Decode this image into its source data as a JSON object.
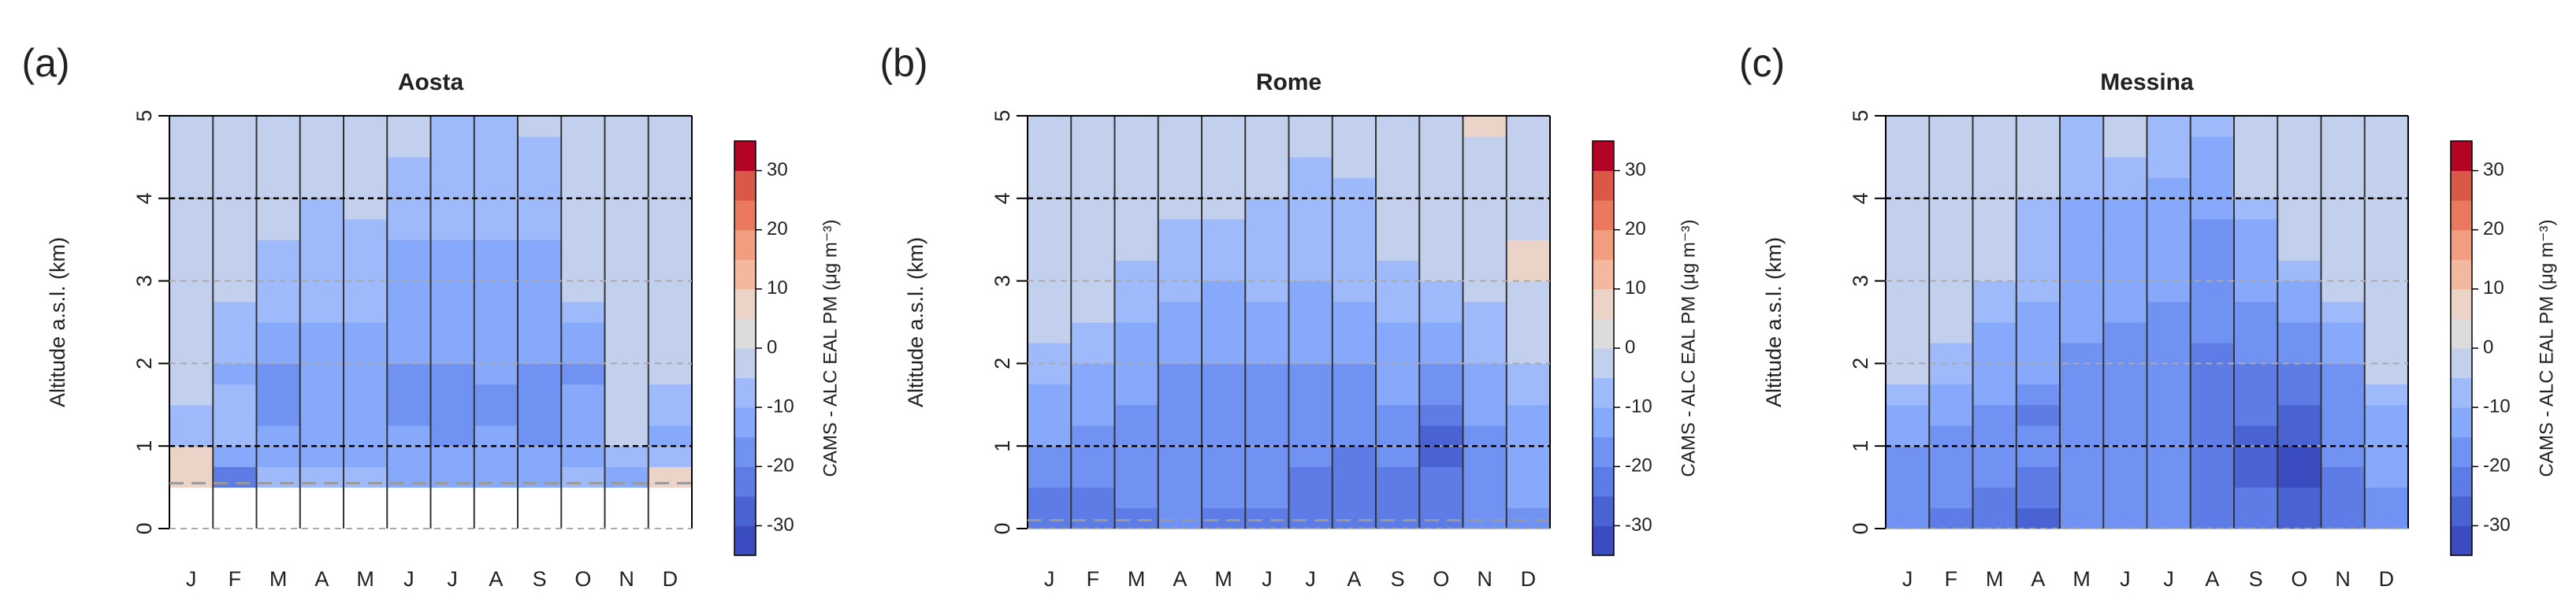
{
  "chart_data": [
    {
      "type": "heatmap",
      "panel_label": "(a)",
      "title": "Aosta",
      "ylabel": "Altitude a.s.l. (km)",
      "categories": [
        "J",
        "F",
        "M",
        "A",
        "M",
        "J",
        "J",
        "A",
        "S",
        "O",
        "N",
        "D"
      ],
      "y_edges": [
        0,
        0.25,
        0.5,
        0.75,
        1,
        1.25,
        1.5,
        1.75,
        2,
        2.25,
        2.5,
        2.75,
        3,
        3.25,
        3.5,
        3.75,
        4,
        4.25,
        4.5,
        4.75,
        5
      ],
      "ylim": [
        0,
        5
      ],
      "yticks": [
        0,
        1,
        2,
        3,
        4,
        5
      ],
      "grid": true,
      "ref_lines": [
        1,
        4
      ],
      "surface": 0.55,
      "values": [
        [
          null,
          null,
          7,
          7,
          -7,
          -7,
          -2,
          -2,
          -2,
          -2,
          -2,
          -2,
          -2,
          -2,
          -2,
          -2,
          -2,
          -2,
          -2,
          -2
        ],
        [
          null,
          null,
          -22,
          -12,
          -7,
          -7,
          -7,
          -12,
          -7,
          -7,
          -7,
          -2,
          -2,
          -2,
          -2,
          -2,
          -2,
          -2,
          -2,
          -2
        ],
        [
          null,
          null,
          -7,
          -12,
          -12,
          -17,
          -17,
          -17,
          -12,
          -12,
          -7,
          -7,
          -7,
          -7,
          -2,
          -2,
          -2,
          -2,
          -2,
          -2
        ],
        [
          null,
          null,
          -7,
          -12,
          -12,
          -12,
          -12,
          -12,
          -12,
          -12,
          -7,
          -7,
          -7,
          -7,
          -7,
          -7,
          -2,
          -2,
          -2,
          -2
        ],
        [
          null,
          null,
          -7,
          -12,
          -12,
          -12,
          -12,
          -12,
          -12,
          -12,
          -7,
          -7,
          -7,
          -7,
          -7,
          -2,
          -2,
          -2,
          -2,
          -2
        ],
        [
          null,
          null,
          -12,
          -12,
          -12,
          -17,
          -17,
          -17,
          -12,
          -12,
          -12,
          -12,
          -12,
          -12,
          -7,
          -7,
          -7,
          -7,
          -2,
          -2
        ],
        [
          null,
          null,
          -12,
          -12,
          -17,
          -17,
          -17,
          -17,
          -12,
          -12,
          -12,
          -12,
          -12,
          -12,
          -7,
          -7,
          -7,
          -7,
          -7,
          -7
        ],
        [
          null,
          null,
          -12,
          -12,
          -12,
          -17,
          -17,
          -12,
          -12,
          -12,
          -12,
          -12,
          -12,
          -12,
          -7,
          -7,
          -7,
          -7,
          -7,
          -7
        ],
        [
          null,
          null,
          -12,
          -12,
          -17,
          -17,
          -17,
          -17,
          -12,
          -12,
          -12,
          -12,
          -12,
          -12,
          -7,
          -7,
          -7,
          -7,
          -7,
          -2
        ],
        [
          null,
          null,
          -7,
          -12,
          -12,
          -12,
          -12,
          -17,
          -12,
          -12,
          -7,
          -2,
          -2,
          -2,
          -2,
          -2,
          -2,
          -2,
          -2,
          -2
        ],
        [
          null,
          null,
          -12,
          -7,
          -2,
          -2,
          -2,
          -2,
          -2,
          -2,
          -2,
          -2,
          -2,
          -2,
          -2,
          -2,
          -2,
          -2,
          -2,
          -2
        ],
        [
          null,
          null,
          7,
          -7,
          -12,
          -7,
          -7,
          -2,
          -2,
          -2,
          -2,
          -2,
          -2,
          -2,
          -2,
          -2,
          -2,
          -2,
          -2,
          -2
        ]
      ],
      "colorbar": {
        "label": "CAMS - ALC EAL PM (μg m⁻³)",
        "levels": [
          -35,
          -30,
          -25,
          -20,
          -15,
          -10,
          -5,
          0,
          5,
          10,
          15,
          20,
          25,
          30,
          35
        ],
        "colors": [
          "#3b4cc0",
          "#4a63d3",
          "#5d7ce6",
          "#7092f3",
          "#86a9fb",
          "#9fbafa",
          "#c2d0ee",
          "#dcdcdc",
          "#ecd3c8",
          "#f4b89e",
          "#f29d80",
          "#e9785d",
          "#d95847",
          "#b40426"
        ],
        "lim": [
          -35,
          35
        ],
        "ticks": [
          -30,
          -20,
          -10,
          0,
          10,
          20,
          30
        ]
      }
    },
    {
      "type": "heatmap",
      "panel_label": "(b)",
      "title": "Rome",
      "ylabel": "Altitude a.s.l. (km)",
      "categories": [
        "J",
        "F",
        "M",
        "A",
        "M",
        "J",
        "J",
        "A",
        "S",
        "O",
        "N",
        "D"
      ],
      "y_edges": [
        0,
        0.25,
        0.5,
        0.75,
        1,
        1.25,
        1.5,
        1.75,
        2,
        2.25,
        2.5,
        2.75,
        3,
        3.25,
        3.5,
        3.75,
        4,
        4.25,
        4.5,
        4.75,
        5
      ],
      "ylim": [
        0,
        5
      ],
      "yticks": [
        0,
        1,
        2,
        3,
        4,
        5
      ],
      "grid": true,
      "ref_lines": [
        1,
        4
      ],
      "surface": 0.1,
      "values": [
        [
          -22,
          -22,
          -17,
          -17,
          -12,
          -12,
          -12,
          -7,
          -7,
          -2,
          -2,
          -2,
          -2,
          -2,
          -2,
          -2,
          -2,
          -2,
          -2,
          -2
        ],
        [
          -22,
          -22,
          -17,
          -17,
          -17,
          -12,
          -12,
          -12,
          -7,
          -7,
          -2,
          -2,
          -2,
          -2,
          -2,
          -2,
          -2,
          -2,
          -2,
          -2
        ],
        [
          -22,
          -17,
          -17,
          -17,
          -17,
          -17,
          -12,
          -12,
          -12,
          -12,
          -7,
          -7,
          -7,
          -2,
          -2,
          -2,
          -2,
          -2,
          -2,
          -2
        ],
        [
          -17,
          -17,
          -17,
          -17,
          -17,
          -17,
          -17,
          -17,
          -12,
          -12,
          -12,
          -7,
          -7,
          -7,
          -7,
          -2,
          -2,
          -2,
          -2,
          -2
        ],
        [
          -22,
          -17,
          -17,
          -17,
          -17,
          -17,
          -17,
          -17,
          -12,
          -12,
          -12,
          -12,
          -7,
          -7,
          -7,
          -2,
          -2,
          -2,
          -2,
          -2
        ],
        [
          -22,
          -17,
          -17,
          -17,
          -17,
          -17,
          -17,
          -17,
          -12,
          -12,
          -12,
          -7,
          -7,
          -7,
          -7,
          -7,
          -2,
          -2,
          -2,
          -2
        ],
        [
          -22,
          -22,
          -22,
          -17,
          -17,
          -17,
          -17,
          -17,
          -12,
          -12,
          -12,
          -12,
          -7,
          -7,
          -7,
          -7,
          -7,
          -7,
          -2,
          -2
        ],
        [
          -22,
          -22,
          -22,
          -22,
          -17,
          -17,
          -17,
          -17,
          -12,
          -12,
          -12,
          -7,
          -7,
          -7,
          -7,
          -7,
          -7,
          -2,
          -2,
          -2
        ],
        [
          -22,
          -22,
          -22,
          -17,
          -17,
          -17,
          -12,
          -12,
          -12,
          -12,
          -7,
          -7,
          -7,
          -2,
          -2,
          -2,
          -2,
          -2,
          -2,
          -2
        ],
        [
          -22,
          -22,
          -22,
          -27,
          -27,
          -22,
          -17,
          -17,
          -12,
          -12,
          -7,
          -7,
          -2,
          -2,
          -2,
          -2,
          -2,
          -2,
          -2,
          -2
        ],
        [
          -17,
          -17,
          -17,
          -17,
          -17,
          -12,
          -12,
          -12,
          -7,
          -7,
          -7,
          -2,
          -2,
          -2,
          -2,
          -2,
          -2,
          -2,
          -2,
          7
        ],
        [
          -17,
          -12,
          -12,
          -12,
          -12,
          -12,
          -7,
          -7,
          -2,
          -2,
          -2,
          -2,
          7,
          7,
          -2,
          -2,
          -2,
          -2,
          -2,
          -2
        ]
      ],
      "colorbar": {
        "label": "CAMS - ALC EAL PM (μg m⁻³)",
        "levels": [
          -35,
          -30,
          -25,
          -20,
          -15,
          -10,
          -5,
          0,
          5,
          10,
          15,
          20,
          25,
          30,
          35
        ],
        "colors": [
          "#3b4cc0",
          "#4a63d3",
          "#5d7ce6",
          "#7092f3",
          "#86a9fb",
          "#9fbafa",
          "#c2d0ee",
          "#dcdcdc",
          "#ecd3c8",
          "#f4b89e",
          "#f29d80",
          "#e9785d",
          "#d95847",
          "#b40426"
        ],
        "lim": [
          -35,
          35
        ],
        "ticks": [
          -30,
          -20,
          -10,
          0,
          10,
          20,
          30
        ]
      }
    },
    {
      "type": "heatmap",
      "panel_label": "(c)",
      "title": "Messina",
      "ylabel": "Altitude a.s.l. (km)",
      "categories": [
        "J",
        "F",
        "M",
        "A",
        "M",
        "J",
        "J",
        "A",
        "S",
        "O",
        "N",
        "D"
      ],
      "y_edges": [
        0,
        0.25,
        0.5,
        0.75,
        1,
        1.25,
        1.5,
        1.75,
        2,
        2.25,
        2.5,
        2.75,
        3,
        3.25,
        3.5,
        3.75,
        4,
        4.25,
        4.5,
        4.75,
        5
      ],
      "ylim": [
        0,
        5
      ],
      "yticks": [
        0,
        1,
        2,
        3,
        4,
        5
      ],
      "grid": true,
      "ref_lines": [
        1,
        4
      ],
      "values": [
        [
          -17,
          -17,
          -17,
          -17,
          -12,
          -12,
          -7,
          -2,
          -2,
          -2,
          -2,
          -2,
          -2,
          -2,
          -2,
          -2,
          -2,
          -2,
          -2,
          -2
        ],
        [
          -22,
          -17,
          -17,
          -17,
          -17,
          -12,
          -12,
          -7,
          -7,
          -2,
          -2,
          -2,
          -2,
          -2,
          -2,
          -2,
          -2,
          -2,
          -2,
          -2
        ],
        [
          -22,
          -22,
          -17,
          -17,
          -17,
          -17,
          -12,
          -12,
          -12,
          -12,
          -7,
          -7,
          -2,
          -2,
          -2,
          -2,
          -2,
          -2,
          -2,
          -2
        ],
        [
          -27,
          -22,
          -22,
          -17,
          -17,
          -22,
          -17,
          -12,
          -12,
          -12,
          -12,
          -7,
          -7,
          -7,
          -7,
          -7,
          -2,
          -2,
          -2,
          -2
        ],
        [
          -17,
          -17,
          -17,
          -17,
          -17,
          -17,
          -17,
          -17,
          -17,
          -12,
          -12,
          -12,
          -12,
          -12,
          -12,
          -12,
          -7,
          -7,
          -7,
          -7
        ],
        [
          -17,
          -17,
          -17,
          -17,
          -17,
          -17,
          -17,
          -17,
          -17,
          -17,
          -12,
          -12,
          -12,
          -12,
          -12,
          -12,
          -7,
          -7,
          -2,
          -2
        ],
        [
          -17,
          -17,
          -17,
          -17,
          -17,
          -17,
          -17,
          -17,
          -17,
          -17,
          -17,
          -12,
          -12,
          -12,
          -12,
          -12,
          -12,
          -7,
          -7,
          -7
        ],
        [
          -22,
          -22,
          -22,
          -22,
          -22,
          -22,
          -22,
          -22,
          -22,
          -17,
          -17,
          -17,
          -17,
          -17,
          -17,
          -12,
          -12,
          -12,
          -12,
          -7
        ],
        [
          -22,
          -22,
          -27,
          -27,
          -27,
          -22,
          -22,
          -22,
          -17,
          -17,
          -17,
          -12,
          -12,
          -12,
          -12,
          -7,
          -2,
          -2,
          -2,
          -2
        ],
        [
          -27,
          -27,
          -32,
          -32,
          -27,
          -27,
          -22,
          -22,
          -17,
          -17,
          -12,
          -12,
          -7,
          -2,
          -2,
          -2,
          -2,
          -2,
          -2,
          -2
        ],
        [
          -22,
          -22,
          -22,
          -17,
          -17,
          -17,
          -17,
          -17,
          -12,
          -12,
          -7,
          -2,
          -2,
          -2,
          -2,
          -2,
          -2,
          -2,
          -2,
          -2
        ],
        [
          -17,
          -17,
          -12,
          -12,
          -12,
          -12,
          -7,
          -2,
          -2,
          -2,
          -2,
          -2,
          -2,
          -2,
          -2,
          -2,
          -2,
          -2,
          -2,
          -2
        ]
      ],
      "colorbar": {
        "label": "CAMS - ALC EAL PM (μg m⁻³)",
        "levels": [
          -35,
          -30,
          -25,
          -20,
          -15,
          -10,
          -5,
          0,
          5,
          10,
          15,
          20,
          25,
          30,
          35
        ],
        "colors": [
          "#3b4cc0",
          "#4a63d3",
          "#5d7ce6",
          "#7092f3",
          "#86a9fb",
          "#9fbafa",
          "#c2d0ee",
          "#dcdcdc",
          "#ecd3c8",
          "#f4b89e",
          "#f29d80",
          "#e9785d",
          "#d95847",
          "#b40426"
        ],
        "lim": [
          -35,
          35
        ],
        "ticks": [
          -30,
          -20,
          -10,
          0,
          10,
          20,
          30
        ]
      }
    }
  ]
}
